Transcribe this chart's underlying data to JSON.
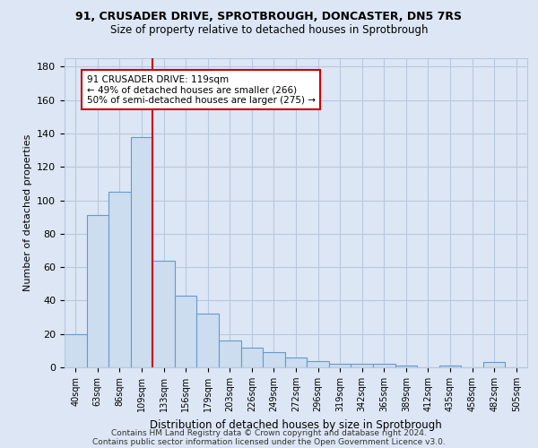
{
  "title1": "91, CRUSADER DRIVE, SPROTBROUGH, DONCASTER, DN5 7RS",
  "title2": "Size of property relative to detached houses in Sprotbrough",
  "xlabel": "Distribution of detached houses by size in Sprotbrough",
  "ylabel": "Number of detached properties",
  "footer1": "Contains HM Land Registry data © Crown copyright and database right 2024.",
  "footer2": "Contains public sector information licensed under the Open Government Licence v3.0.",
  "bin_labels": [
    "40sqm",
    "63sqm",
    "86sqm",
    "109sqm",
    "133sqm",
    "156sqm",
    "179sqm",
    "203sqm",
    "226sqm",
    "249sqm",
    "272sqm",
    "296sqm",
    "319sqm",
    "342sqm",
    "365sqm",
    "389sqm",
    "412sqm",
    "435sqm",
    "458sqm",
    "482sqm",
    "505sqm"
  ],
  "bar_values": [
    20,
    91,
    105,
    138,
    64,
    43,
    32,
    16,
    12,
    9,
    6,
    4,
    2,
    2,
    2,
    1,
    0,
    1,
    0,
    3,
    0
  ],
  "bar_color": "#ccddf0",
  "bar_edge_color": "#6699cc",
  "grid_color": "#b8c8df",
  "background_color": "#dce6f5",
  "red_line_x": 3.5,
  "annotation_text1": "91 CRUSADER DRIVE: 119sqm",
  "annotation_text2": "← 49% of detached houses are smaller (266)",
  "annotation_text3": "50% of semi-detached houses are larger (275) →",
  "annotation_box_color": "#ffffff",
  "annotation_border_color": "#cc0000",
  "ylim": [
    0,
    185
  ],
  "yticks": [
    0,
    20,
    40,
    60,
    80,
    100,
    120,
    140,
    160,
    180
  ]
}
